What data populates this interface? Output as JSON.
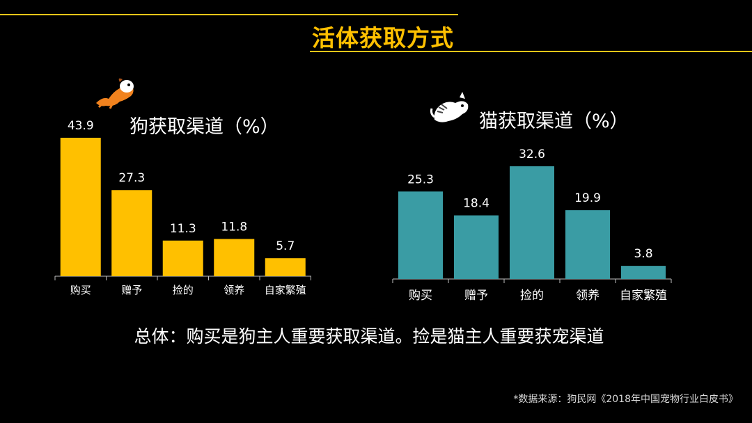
{
  "page": {
    "title": "活体获取方式",
    "summary": "总体：购买是狗主人重要获取渠道。捡是猫主人重要获宠渠道",
    "source": "*数据来源：狗民网《2018年中国宠物行业白皮书》"
  },
  "colors": {
    "accent": "#ffc000",
    "dog_bar": "#ffc000",
    "cat_bar": "#3a9ca4"
  },
  "icons": {
    "dog": "dog-mascot-icon",
    "cat": "cat-mascot-icon"
  },
  "chart_data": [
    {
      "type": "bar",
      "title": "狗获取渠道（%）",
      "categories": [
        "购买",
        "赠予",
        "捡的",
        "领养",
        "自家繁殖"
      ],
      "values": [
        43.9,
        27.3,
        11.3,
        11.8,
        5.7
      ],
      "data_labels": [
        "43.9",
        "27.3",
        "11.3",
        "11.8",
        "5.7"
      ],
      "color": "#ffc000",
      "ylim": [
        0,
        43.9
      ],
      "grid": false,
      "legend": "none"
    },
    {
      "type": "bar",
      "title": "猫获取渠道（%）",
      "categories": [
        "购买",
        "赠予",
        "捡的",
        "领养",
        "自家繁殖"
      ],
      "values": [
        25.3,
        18.4,
        32.6,
        19.9,
        3.8
      ],
      "data_labels": [
        "25.3",
        "18.4",
        "32.6",
        "19.9",
        "3.8"
      ],
      "color": "#3a9ca4",
      "ylim": [
        0,
        32.6
      ],
      "grid": false,
      "legend": "none"
    }
  ]
}
